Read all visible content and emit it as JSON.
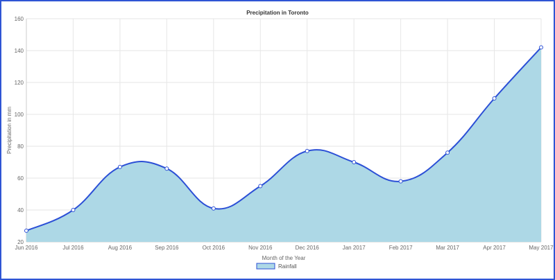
{
  "chart_data": {
    "type": "area",
    "title": "Precipitation in Toronto",
    "xlabel": "Month of the Year",
    "ylabel": "Precipitation in mm",
    "categories": [
      "Jun 2016",
      "Jul 2016",
      "Aug 2016",
      "Sep 2016",
      "Oct 2016",
      "Nov 2016",
      "Dec 2016",
      "Jan 2017",
      "Feb 2017",
      "Mar 2017",
      "Apr 2017",
      "May 2017"
    ],
    "series": [
      {
        "name": "Rainfall",
        "values": [
          27,
          40,
          67,
          66,
          41,
          55,
          77,
          70,
          58,
          76,
          110,
          142
        ]
      }
    ],
    "ylim": [
      20,
      160
    ],
    "yticks": [
      20,
      40,
      60,
      80,
      100,
      120,
      140,
      160
    ],
    "grid": true,
    "legend": "bottom",
    "colors": {
      "fill": "#add8e6",
      "line": "#2b4fd6",
      "grid": "#e6e6e6"
    }
  }
}
